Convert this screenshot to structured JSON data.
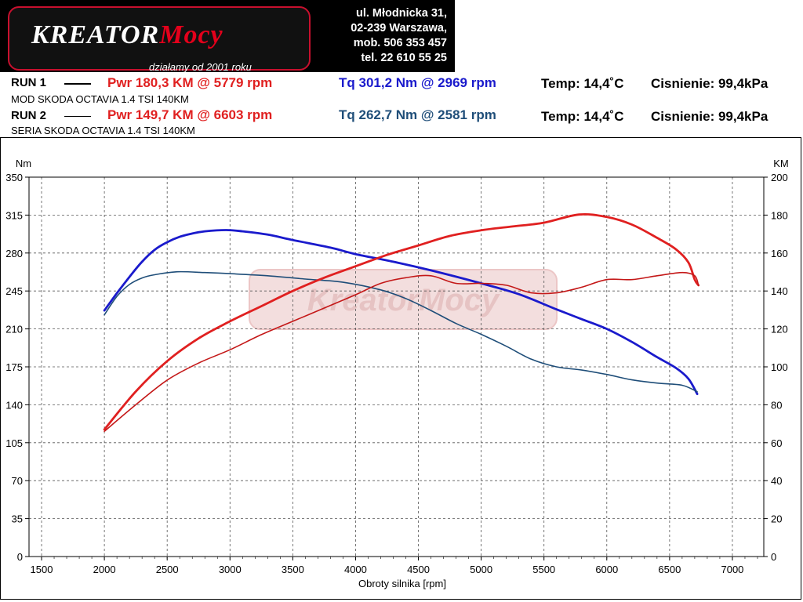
{
  "header": {
    "logo_word": "KreatorMocy",
    "logo_part1": "KREATOR",
    "logo_part2": "Mocy",
    "slogan": "działamy od 2001 roku",
    "address": [
      "ul. Młodnicka 31,",
      "02-239  Warszawa,",
      "mob.  506 353 457",
      "tel.  22 610 55 25"
    ]
  },
  "runs": [
    {
      "label": "RUN 1",
      "car": "MOD SKODA OCTAVIA 1.4 TSI 140KM",
      "power": "Pwr  180,3 KM @ 5779 rpm",
      "torque": "Tq 301,2 Nm @ 2969 rpm",
      "temp": "Temp: 14,4˚C",
      "pressure": "Cisnienie: 99,4kPa"
    },
    {
      "label": "RUN 2",
      "car": "SERIA SKODA OCTAVIA 1.4 TSI 140KM",
      "power": "Pwr  149,7 KM @ 6603 rpm",
      "torque": "Tq 262,7 Nm @ 2581 rpm",
      "temp": "Temp: 14,4˚C",
      "pressure": "Cisnienie: 99,4kPa"
    }
  ],
  "colors": {
    "power": "#e02020",
    "torque_run1": "#1a1acc",
    "torque_run2": "#1f4e79",
    "power_run2": "#c41818"
  },
  "chart_data": {
    "type": "line",
    "title": "",
    "xlabel": "Obroty silnika [rpm]",
    "ylabel_left": "Nm",
    "ylabel_right": "KM",
    "xlim": [
      1400,
      7250
    ],
    "xticks": [
      1500,
      2000,
      2500,
      3000,
      3500,
      4000,
      4500,
      5000,
      5500,
      6000,
      6500,
      7000
    ],
    "ylim_left": [
      0,
      350
    ],
    "yticks_left": [
      0,
      35,
      70,
      105,
      140,
      175,
      210,
      245,
      280,
      315,
      350
    ],
    "ylim_right": [
      0,
      200
    ],
    "yticks_right": [
      0,
      20,
      40,
      60,
      80,
      100,
      120,
      140,
      160,
      180,
      200
    ],
    "grid": true,
    "watermark": "KreatorMocy",
    "series": [
      {
        "name": "RUN 1 Tq",
        "axis": "left",
        "x": [
          2000,
          2100,
          2200,
          2300,
          2400,
          2500,
          2600,
          2700,
          2800,
          2969,
          3100,
          3300,
          3500,
          3800,
          4000,
          4300,
          4600,
          5000,
          5300,
          5600,
          5800,
          6000,
          6200,
          6400,
          6550,
          6650,
          6720
        ],
        "y": [
          227,
          243,
          258,
          272,
          283,
          290,
          295,
          298,
          300,
          301.2,
          300,
          297,
          292,
          285,
          279,
          272,
          264,
          252,
          242,
          228,
          219,
          210,
          198,
          184,
          174,
          164,
          150
        ]
      },
      {
        "name": "RUN 2 Tq",
        "axis": "left",
        "x": [
          2000,
          2100,
          2200,
          2300,
          2400,
          2581,
          2800,
          3000,
          3300,
          3600,
          3900,
          4200,
          4400,
          4600,
          4800,
          5000,
          5200,
          5400,
          5600,
          5800,
          6000,
          6200,
          6400,
          6600,
          6720
        ],
        "y": [
          223,
          240,
          251,
          257,
          260,
          262.7,
          262,
          261,
          259,
          256,
          253,
          246,
          238,
          227,
          215,
          205,
          194,
          182,
          175,
          172,
          168,
          163,
          160,
          158,
          152
        ]
      },
      {
        "name": "RUN 1 Pwr",
        "axis": "right",
        "x": [
          2000,
          2250,
          2500,
          2750,
          3000,
          3250,
          3500,
          3750,
          4000,
          4250,
          4500,
          4750,
          5000,
          5250,
          5500,
          5779,
          6000,
          6200,
          6400,
          6550,
          6650,
          6700,
          6730
        ],
        "y": [
          67,
          87,
          103,
          115,
          124,
          132,
          140,
          147,
          153,
          159,
          164,
          169,
          172,
          174,
          176,
          180.3,
          179,
          175,
          168,
          162,
          155,
          146,
          143
        ]
      },
      {
        "name": "RUN 2 Pwr",
        "axis": "right",
        "x": [
          2000,
          2250,
          2500,
          2750,
          3000,
          3250,
          3500,
          3750,
          4000,
          4200,
          4400,
          4600,
          4800,
          5000,
          5200,
          5400,
          5600,
          5800,
          6000,
          6200,
          6400,
          6603,
          6700,
          6730
        ],
        "y": [
          66,
          80,
          93,
          102,
          109,
          117,
          124,
          131,
          138,
          144,
          147,
          148,
          144,
          144,
          143,
          139,
          139,
          142,
          146,
          146,
          148,
          149.7,
          148,
          143
        ]
      }
    ]
  }
}
